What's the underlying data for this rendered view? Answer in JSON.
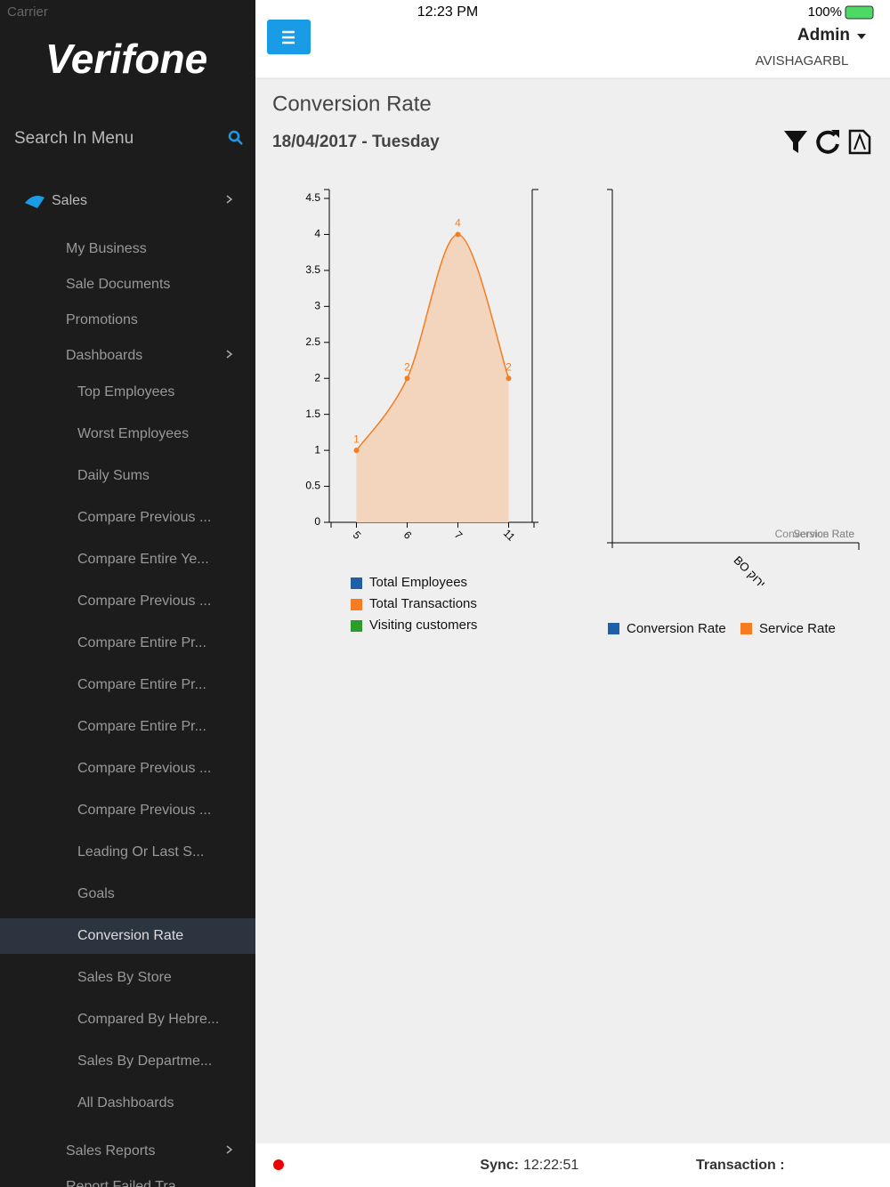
{
  "status_bar": {
    "carrier": "Carrier",
    "time": "12:23 PM",
    "battery": "100%"
  },
  "sidebar": {
    "logo": "Verifone",
    "search": "Search In Menu",
    "menu": [
      {
        "label": "Sales",
        "children": [
          {
            "label": "My Business"
          },
          {
            "label": "Sale Documents"
          },
          {
            "label": "Promotions"
          },
          {
            "label": "Dashboards",
            "children": [
              {
                "label": "Top Employees"
              },
              {
                "label": "Worst Employees"
              },
              {
                "label": "Daily Sums"
              },
              {
                "label": "Compare Previous ..."
              },
              {
                "label": "Compare Entire Ye..."
              },
              {
                "label": "Compare Previous ..."
              },
              {
                "label": "Compare Entire Pr..."
              },
              {
                "label": "Compare Entire Pr..."
              },
              {
                "label": "Compare Entire Pr..."
              },
              {
                "label": "Compare Previous ..."
              },
              {
                "label": "Compare Previous ..."
              },
              {
                "label": "Leading Or Last S..."
              },
              {
                "label": "Goals"
              },
              {
                "label": "Conversion Rate",
                "active": true
              },
              {
                "label": "Sales By Store"
              },
              {
                "label": "Compared By Hebre..."
              },
              {
                "label": "Sales By Departme..."
              },
              {
                "label": "All Dashboards"
              }
            ]
          },
          {
            "label": "Sales Reports",
            "children": []
          },
          {
            "label": "Report Failed Tra"
          }
        ]
      }
    ]
  },
  "header": {
    "user": "Admin",
    "store": "AVISHAGARBL"
  },
  "page": {
    "title": "Conversion Rate",
    "date": "18/04/2017 - Tuesday"
  },
  "chart_data": [
    {
      "type": "area",
      "categories": [
        "5",
        "6",
        "7",
        "11"
      ],
      "series": [
        {
          "name": "Total Transactions",
          "color": "#f57c20",
          "values": [
            1,
            2,
            4,
            2
          ]
        }
      ],
      "legend": [
        {
          "name": "Total Employees",
          "color": "#1f5fa8"
        },
        {
          "name": "Total Transactions",
          "color": "#f57c20"
        },
        {
          "name": "Visiting customers",
          "color": "#2a9d2a"
        }
      ],
      "ylim": [
        0,
        4.5
      ],
      "yticks": [
        0,
        0.5,
        1,
        1.5,
        2,
        2.5,
        3,
        3.5,
        4,
        4.5
      ]
    },
    {
      "type": "bar",
      "categories": [
        "BO ירוק"
      ],
      "series": [
        {
          "name": "Conversion Rate",
          "color": "#1f5fa8",
          "values": [
            null
          ]
        },
        {
          "name": "Service Rate",
          "color": "#f57c20",
          "values": [
            null
          ]
        }
      ]
    }
  ],
  "footer": {
    "sync_label": "Sync:",
    "sync_time": "12:22:51",
    "transaction_label": "Transaction :"
  }
}
